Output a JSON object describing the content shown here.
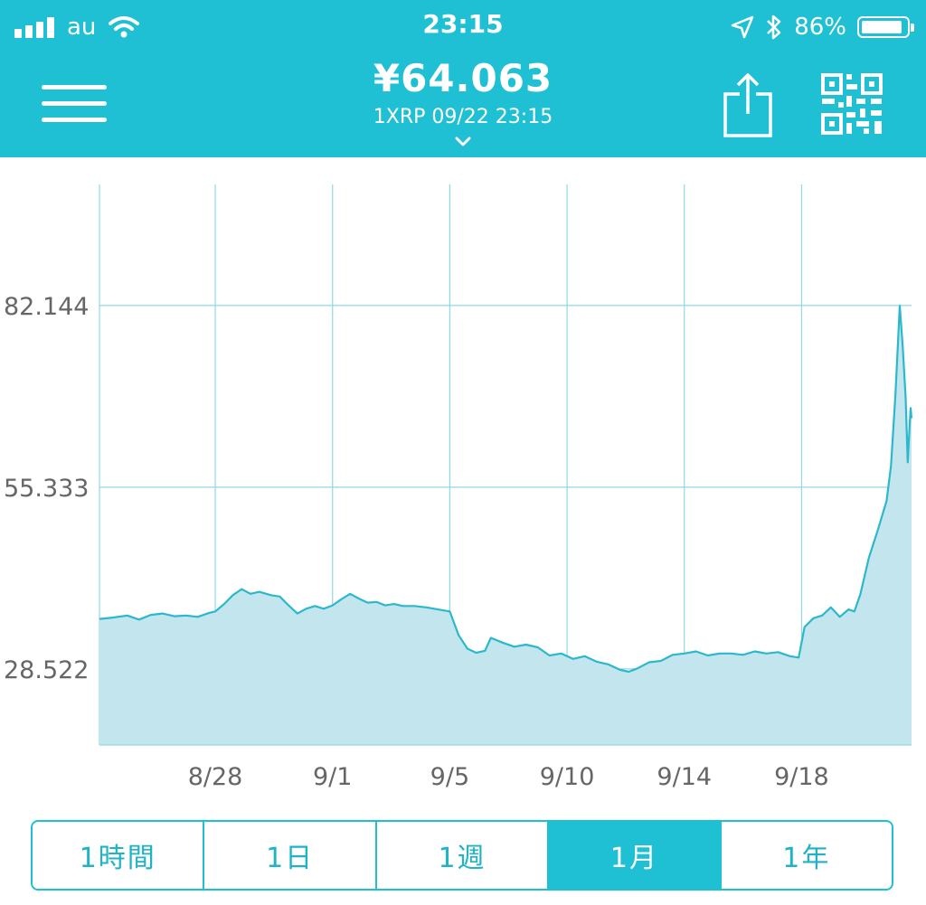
{
  "status_bar": {
    "carrier": "au",
    "time": "23:15",
    "battery": "86%"
  },
  "header": {
    "price": "¥64.063",
    "subtitle": "1XRP  09/22 23:15"
  },
  "chart_data": {
    "type": "area",
    "y_ticks": [
      82.144,
      55.333,
      28.522
    ],
    "x_ticks": [
      {
        "label": "8/28",
        "day": 4
      },
      {
        "label": "9/1",
        "day": 8
      },
      {
        "label": "9/5",
        "day": 12
      },
      {
        "label": "9/10",
        "day": 16
      },
      {
        "label": "9/14",
        "day": 20
      },
      {
        "label": "9/18",
        "day": 24
      }
    ],
    "ylim": [
      17.3,
      100
    ],
    "xlim": [
      0.05,
      27.75
    ],
    "points": [
      [
        0.05,
        35.9
      ],
      [
        0.5,
        36.1
      ],
      [
        1.0,
        36.4
      ],
      [
        1.4,
        35.8
      ],
      [
        1.8,
        36.5
      ],
      [
        2.2,
        36.7
      ],
      [
        2.6,
        36.3
      ],
      [
        3.0,
        36.4
      ],
      [
        3.4,
        36.2
      ],
      [
        3.8,
        36.8
      ],
      [
        4.0,
        37.0
      ],
      [
        4.3,
        38.1
      ],
      [
        4.6,
        39.4
      ],
      [
        4.9,
        40.3
      ],
      [
        5.2,
        39.6
      ],
      [
        5.5,
        39.9
      ],
      [
        5.9,
        39.4
      ],
      [
        6.2,
        39.2
      ],
      [
        6.5,
        37.9
      ],
      [
        6.8,
        36.7
      ],
      [
        7.1,
        37.4
      ],
      [
        7.4,
        37.8
      ],
      [
        7.7,
        37.4
      ],
      [
        8.0,
        37.9
      ],
      [
        8.3,
        38.8
      ],
      [
        8.6,
        39.6
      ],
      [
        8.9,
        38.9
      ],
      [
        9.2,
        38.3
      ],
      [
        9.5,
        38.4
      ],
      [
        9.8,
        37.9
      ],
      [
        10.1,
        38.1
      ],
      [
        10.4,
        37.8
      ],
      [
        10.8,
        37.8
      ],
      [
        11.2,
        37.6
      ],
      [
        11.6,
        37.3
      ],
      [
        12.0,
        37.0
      ],
      [
        12.3,
        33.5
      ],
      [
        12.6,
        31.5
      ],
      [
        12.9,
        30.9
      ],
      [
        13.2,
        31.2
      ],
      [
        13.4,
        33.1
      ],
      [
        13.8,
        32.4
      ],
      [
        14.2,
        31.8
      ],
      [
        14.6,
        32.1
      ],
      [
        15.0,
        31.7
      ],
      [
        15.4,
        30.5
      ],
      [
        15.8,
        30.8
      ],
      [
        16.2,
        30.0
      ],
      [
        16.6,
        30.4
      ],
      [
        17.0,
        29.6
      ],
      [
        17.4,
        29.2
      ],
      [
        17.8,
        28.4
      ],
      [
        18.1,
        28.1
      ],
      [
        18.4,
        28.6
      ],
      [
        18.8,
        29.5
      ],
      [
        19.2,
        29.7
      ],
      [
        19.6,
        30.6
      ],
      [
        20.0,
        30.8
      ],
      [
        20.4,
        31.1
      ],
      [
        20.8,
        30.5
      ],
      [
        21.2,
        30.8
      ],
      [
        21.6,
        30.8
      ],
      [
        22.0,
        30.6
      ],
      [
        22.4,
        31.1
      ],
      [
        22.8,
        30.8
      ],
      [
        23.2,
        31.0
      ],
      [
        23.6,
        30.4
      ],
      [
        23.9,
        30.2
      ],
      [
        24.1,
        34.7
      ],
      [
        24.4,
        36.0
      ],
      [
        24.7,
        36.4
      ],
      [
        25.0,
        37.6
      ],
      [
        25.3,
        36.2
      ],
      [
        25.6,
        37.3
      ],
      [
        25.8,
        37.0
      ],
      [
        26.0,
        39.5
      ],
      [
        26.3,
        45.0
      ],
      [
        26.6,
        49.0
      ],
      [
        26.9,
        53.3
      ],
      [
        27.05,
        58.5
      ],
      [
        27.2,
        69.0
      ],
      [
        27.35,
        82.1
      ],
      [
        27.45,
        76.0
      ],
      [
        27.55,
        68.5
      ],
      [
        27.62,
        59.0
      ],
      [
        27.68,
        64.0
      ],
      [
        27.72,
        67.0
      ],
      [
        27.75,
        65.5
      ]
    ],
    "colors": {
      "line": "#2cb8cc",
      "fill": "#c3e6ee",
      "grid": "#8fd9e4"
    }
  },
  "range_selector": {
    "options": [
      "1時間",
      "1日",
      "1週",
      "1月",
      "1年"
    ],
    "selected": "1月"
  }
}
